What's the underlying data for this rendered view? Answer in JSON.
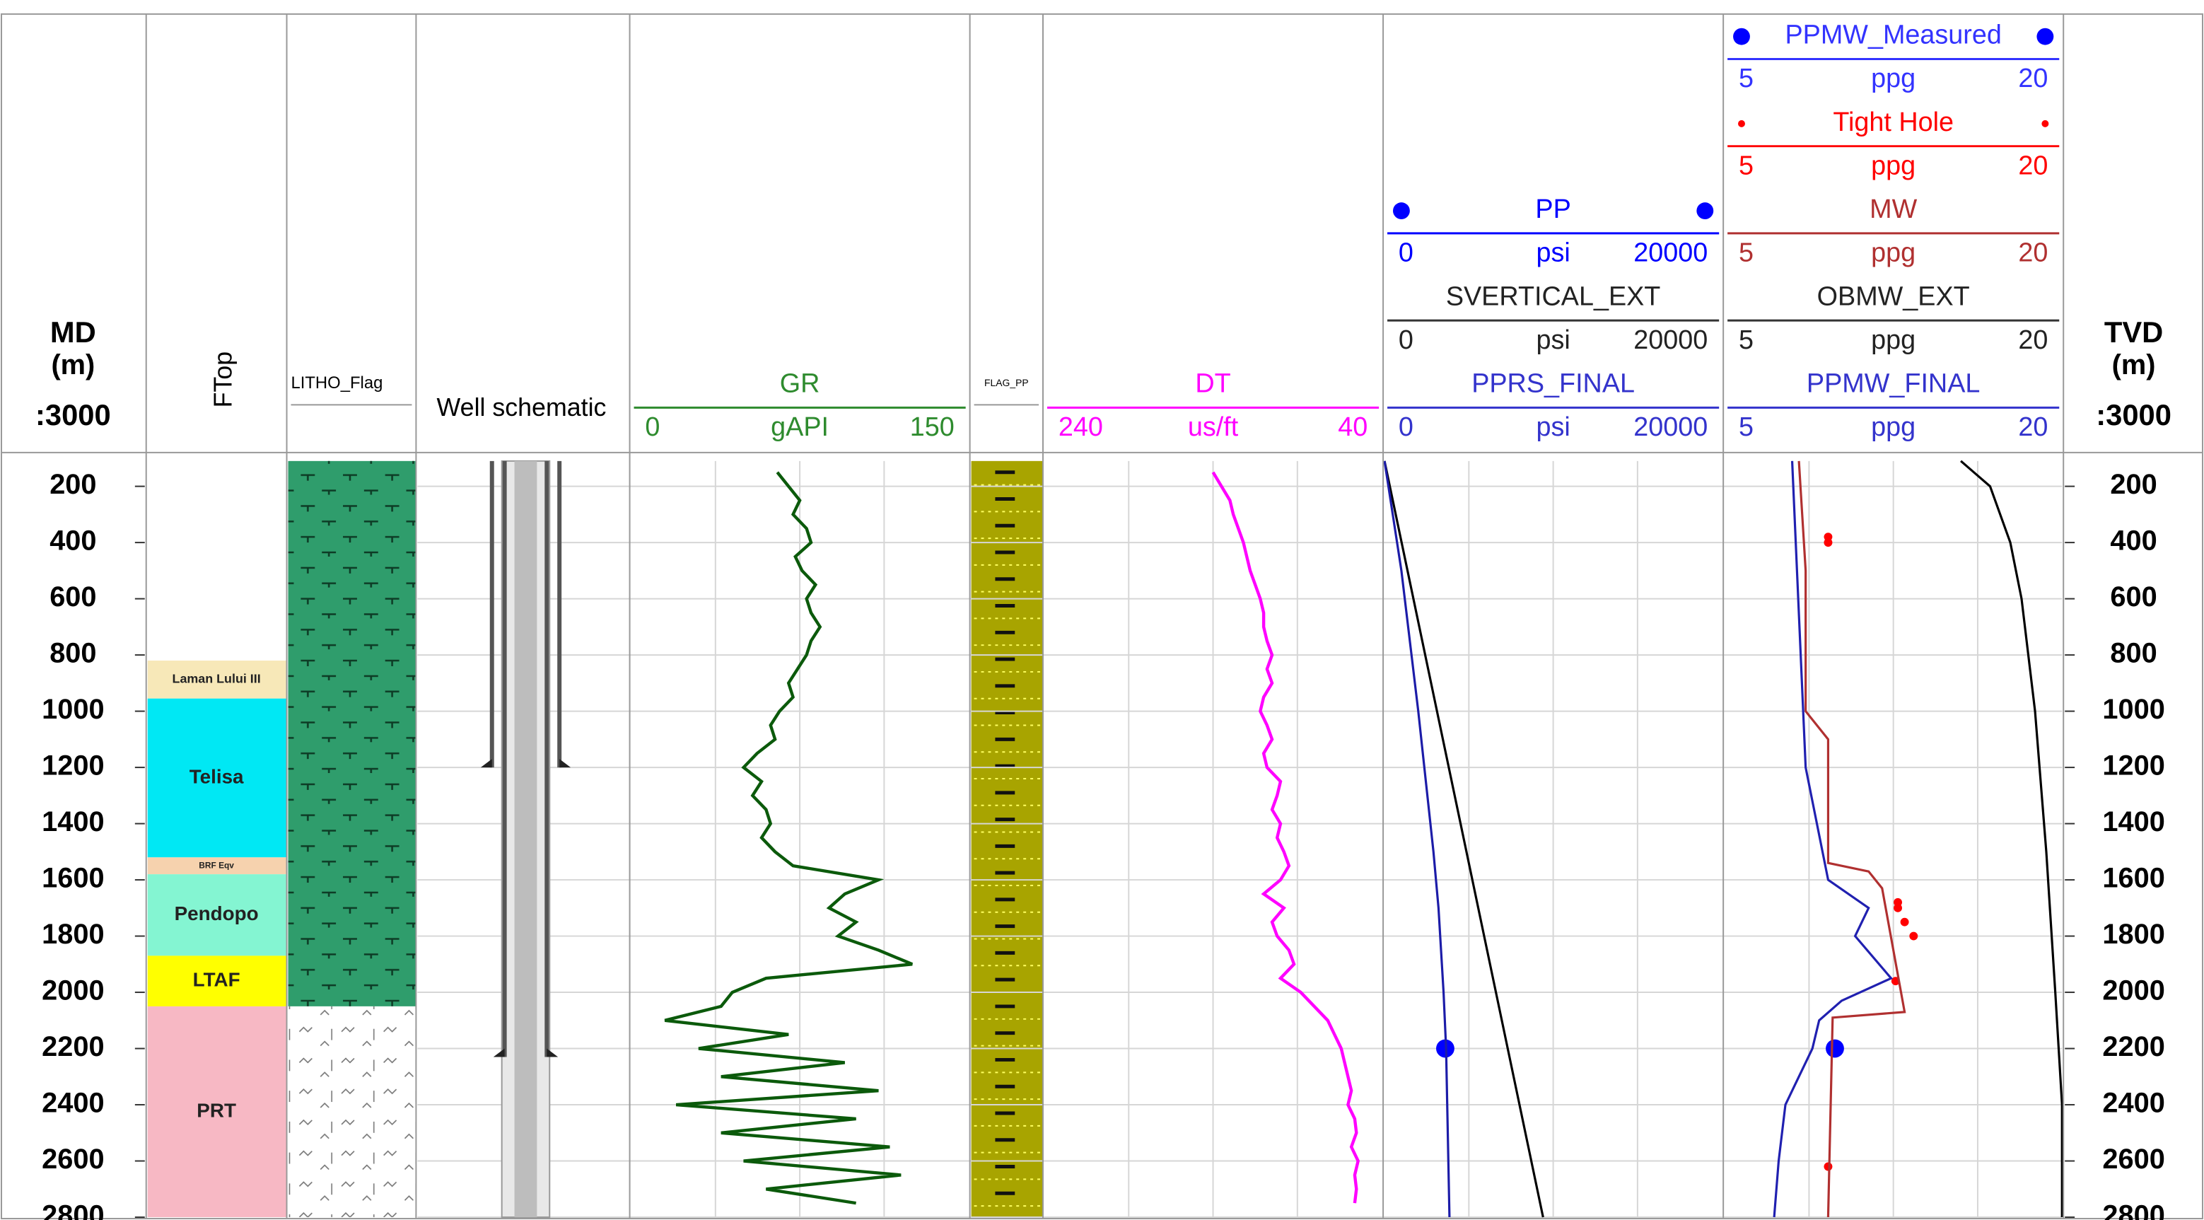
{
  "chart_data": {
    "type": "well-log",
    "ylim": [
      110,
      2800
    ],
    "yticks": [
      200,
      400,
      600,
      800,
      1000,
      1200,
      1400,
      1600,
      1800,
      2000,
      2200,
      2400,
      2600,
      2800
    ],
    "grid": true,
    "depth_tracks": [
      {
        "label": "MD",
        "unit": "(m)",
        "scale": ":3000"
      },
      {
        "label": "TVD",
        "unit": "(m)",
        "scale": ":3000"
      }
    ],
    "formations": {
      "title": "FTop",
      "zones": [
        {
          "name": "Laman Lului III",
          "top": 820,
          "base": 955,
          "color": "#f7e8b8"
        },
        {
          "name": "Telisa",
          "top": 955,
          "base": 1520,
          "color": "#00e8f4"
        },
        {
          "name": "BRF Eqv",
          "top": 1520,
          "base": 1580,
          "color": "#f6d2ae"
        },
        {
          "name": "Pendopo",
          "top": 1580,
          "base": 1870,
          "color": "#84f5d2"
        },
        {
          "name": "LTAF",
          "top": 1870,
          "base": 2050,
          "color": "#ffff00"
        },
        {
          "name": "PRT",
          "top": 2050,
          "base": 2800,
          "color": "#f7b8c4"
        }
      ]
    },
    "litho": {
      "title": "LITHO_Flag",
      "zones": [
        {
          "top": 110,
          "base": 2050,
          "color": "#2f9d6c"
        },
        {
          "top": 2050,
          "base": 2800,
          "color": "#ffffff"
        }
      ]
    },
    "schematic": {
      "title": "Well schematic",
      "casing_shoes": [
        1200,
        2230
      ]
    },
    "flag": {
      "title": "FLAG_PP"
    },
    "sample_depths": [
      150,
      200,
      250,
      300,
      350,
      400,
      450,
      500,
      550,
      600,
      650,
      700,
      750,
      800,
      850,
      900,
      950,
      1000,
      1050,
      1100,
      1150,
      1200,
      1250,
      1300,
      1350,
      1400,
      1450,
      1500,
      1550,
      1600,
      1650,
      1700,
      1750,
      1800,
      1850,
      1900,
      1950,
      2000,
      2050,
      2100,
      2150,
      2200,
      2250,
      2300,
      2350,
      2400,
      2450,
      2500,
      2550,
      2600,
      2650,
      2700,
      2750
    ],
    "tracks": [
      {
        "curves": [
          {
            "name": "GR",
            "color": "#0b5a0b",
            "header_color": "#2e8b2e",
            "unit": "gAPI",
            "xlim": [
              0,
              150
            ],
            "values": [
              65,
              70,
              75,
              72,
              78,
              80,
              73,
              76,
              82,
              78,
              80,
              84,
              80,
              78,
              74,
              70,
              72,
              66,
              62,
              64,
              56,
              50,
              58,
              54,
              60,
              62,
              58,
              64,
              72,
              110,
              95,
              88,
              100,
              92,
              110,
              125,
              60,
              45,
              40,
              15,
              70,
              30,
              95,
              40,
              110,
              20,
              100,
              40,
              115,
              50,
              120,
              60,
              100
            ]
          }
        ]
      },
      {
        "curves": [
          {
            "name": "DT",
            "color": "#ff00ff",
            "header_color": "#ff00ff",
            "unit": "us/ft",
            "xlim": [
              240,
              40
            ],
            "values": [
              140,
              135,
              130,
              128,
              125,
              122,
              120,
              118,
              115,
              112,
              110,
              110,
              108,
              105,
              108,
              105,
              110,
              112,
              108,
              105,
              110,
              108,
              100,
              102,
              105,
              100,
              102,
              98,
              95,
              100,
              110,
              98,
              105,
              102,
              95,
              92,
              100,
              88,
              80,
              72,
              68,
              64,
              62,
              60,
              58,
              60,
              56,
              55,
              58,
              54,
              56,
              55,
              56
            ]
          }
        ]
      },
      {
        "curves": [
          {
            "name": "PP",
            "color": "#0000ff",
            "header_color": "#0000ff",
            "unit": "psi",
            "xlim": [
              0,
              20000
            ],
            "marker": "dot",
            "depths": [
              2200
            ],
            "values": [
              3600
            ]
          },
          {
            "name": "SVERTICAL_EXT",
            "color": "#000000",
            "header_color": "#222222",
            "unit": "psi",
            "xlim": [
              0,
              20000
            ],
            "depths": [
              110,
              2800
            ],
            "values": [
              0,
              9400
            ]
          },
          {
            "name": "PPRS_FINAL",
            "color": "#1c1ca8",
            "header_color": "#3333cc",
            "unit": "psi",
            "xlim": [
              0,
              20000
            ],
            "depths": [
              110,
              500,
              1000,
              1500,
              1700,
              2000,
              2200,
              2800
            ],
            "values": [
              0,
              1000,
              2000,
              2900,
              3200,
              3500,
              3650,
              3850
            ]
          }
        ]
      },
      {
        "curves": [
          {
            "name": "PPMW_Measured",
            "color": "#0000ff",
            "header_color": "#3333ff",
            "unit": "ppg",
            "xlim": [
              5,
              20
            ],
            "marker": "dot",
            "depths": [
              2200
            ],
            "values": [
              9.9
            ]
          },
          {
            "name": "Tight Hole",
            "color": "#ff0000",
            "header_color": "#ff0000",
            "unit": "ppg",
            "xlim": [
              5,
              20
            ],
            "marker": "small",
            "depths": [
              380,
              400,
              1680,
              1700,
              1750,
              1800,
              1960,
              2620
            ],
            "values": [
              9.6,
              9.6,
              12.7,
              12.7,
              13.0,
              13.4,
              12.6,
              9.6
            ]
          },
          {
            "name": "MW",
            "color": "#b03030",
            "header_color": "#b03030",
            "unit": "ppg",
            "xlim": [
              5,
              20
            ],
            "depths": [
              110,
              500,
              1000,
              1100,
              1540,
              1570,
              1630,
              2070,
              2090,
              2800
            ],
            "values": [
              8.3,
              8.6,
              8.6,
              9.6,
              9.6,
              11.4,
              12.0,
              13.0,
              9.8,
              9.6
            ]
          },
          {
            "name": "OBMW_EXT",
            "color": "#000000",
            "header_color": "#222222",
            "unit": "ppg",
            "xlim": [
              5,
              20
            ],
            "depths": [
              110,
              200,
              400,
              600,
              1000,
              1500,
              2000,
              2400,
              2800
            ],
            "values": [
              15.5,
              16.8,
              17.7,
              18.2,
              18.8,
              19.3,
              19.7,
              20,
              20
            ]
          },
          {
            "name": "PPMW_FINAL",
            "color": "#2020b0",
            "header_color": "#3333cc",
            "unit": "ppg",
            "xlim": [
              5,
              20
            ],
            "depths": [
              110,
              1200,
              1600,
              1700,
              1800,
              1950,
              2030,
              2100,
              2200,
              2400,
              2600,
              2800
            ],
            "values": [
              8.0,
              8.6,
              9.6,
              11.4,
              10.8,
              12.4,
              10.2,
              9.2,
              8.9,
              7.7,
              7.4,
              7.2
            ]
          }
        ]
      }
    ]
  }
}
